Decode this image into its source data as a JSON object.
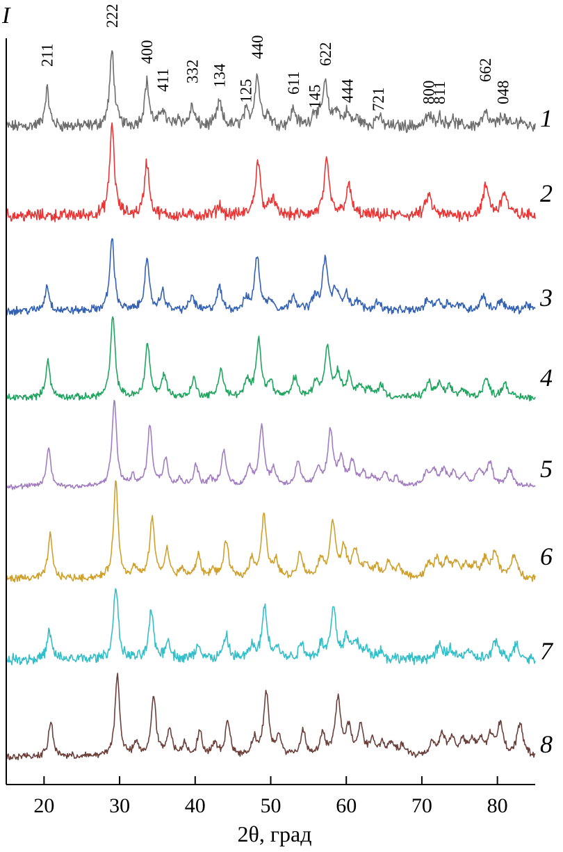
{
  "chart_data": {
    "type": "line",
    "ylabel": "I",
    "xlabel": "2θ, град",
    "xlim": [
      15,
      85
    ],
    "xticks": [
      20,
      30,
      40,
      50,
      60,
      70,
      80
    ],
    "xtick_labels": [
      "20",
      "30",
      "40",
      "50",
      "60",
      "70",
      "80"
    ],
    "grid": false,
    "legend": "none",
    "reflections": [
      {
        "label": "211",
        "x": 20.4
      },
      {
        "label": "222",
        "x": 29.0
      },
      {
        "label": "400",
        "x": 33.6
      },
      {
        "label": "411",
        "x": 35.7
      },
      {
        "label": "332",
        "x": 39.6
      },
      {
        "label": "134",
        "x": 43.2
      },
      {
        "label": "125",
        "x": 46.7
      },
      {
        "label": "440",
        "x": 48.2
      },
      {
        "label": "611",
        "x": 53.0
      },
      {
        "label": "145",
        "x": 55.8
      },
      {
        "label": "622",
        "x": 57.2
      },
      {
        "label": "444",
        "x": 60.1
      },
      {
        "label": "721",
        "x": 64.2
      },
      {
        "label": "800",
        "x": 70.9
      },
      {
        "label": "811",
        "x": 72.3
      },
      {
        "label": "662",
        "x": 78.4
      },
      {
        "label": "048",
        "x": 80.7
      }
    ],
    "series": [
      {
        "label": "1",
        "color": "#6d6d6d",
        "noise": 0.09,
        "peaks": [
          [
            20.4,
            0.35
          ],
          [
            29.0,
            0.72
          ],
          [
            33.6,
            0.42
          ],
          [
            35.7,
            0.17
          ],
          [
            37.8,
            0.08
          ],
          [
            39.6,
            0.18
          ],
          [
            43.2,
            0.23
          ],
          [
            46.7,
            0.12
          ],
          [
            48.2,
            0.48
          ],
          [
            49.6,
            0.1
          ],
          [
            53.0,
            0.16
          ],
          [
            55.8,
            0.13
          ],
          [
            57.2,
            0.4
          ],
          [
            58.7,
            0.15
          ],
          [
            60.1,
            0.12
          ],
          [
            61.5,
            0.07
          ],
          [
            64.2,
            0.1
          ],
          [
            70.9,
            0.1
          ],
          [
            72.3,
            0.09
          ],
          [
            74.0,
            0.06
          ],
          [
            78.4,
            0.12
          ],
          [
            80.7,
            0.1
          ],
          [
            83.0,
            0.06
          ]
        ]
      },
      {
        "label": "2",
        "color": "#ea3535",
        "noise": 0.09,
        "peaks": [
          [
            29.0,
            0.88
          ],
          [
            33.6,
            0.52
          ],
          [
            43.2,
            0.1
          ],
          [
            48.3,
            0.52
          ],
          [
            50.2,
            0.16
          ],
          [
            57.4,
            0.5
          ],
          [
            60.3,
            0.28
          ],
          [
            70.9,
            0.2
          ],
          [
            78.5,
            0.28
          ],
          [
            80.9,
            0.22
          ]
        ]
      },
      {
        "label": "3",
        "color": "#3461b1",
        "noise": 0.06,
        "peaks": [
          [
            20.4,
            0.24
          ],
          [
            29.0,
            0.7
          ],
          [
            33.6,
            0.48
          ],
          [
            35.7,
            0.18
          ],
          [
            39.6,
            0.14
          ],
          [
            43.2,
            0.22
          ],
          [
            46.7,
            0.1
          ],
          [
            48.2,
            0.52
          ],
          [
            50.0,
            0.1
          ],
          [
            53.0,
            0.15
          ],
          [
            55.8,
            0.12
          ],
          [
            57.2,
            0.48
          ],
          [
            58.6,
            0.18
          ],
          [
            60.0,
            0.16
          ],
          [
            61.6,
            0.08
          ],
          [
            64.2,
            0.09
          ],
          [
            70.8,
            0.1
          ],
          [
            72.1,
            0.09
          ],
          [
            73.5,
            0.07
          ],
          [
            75.0,
            0.06
          ],
          [
            78.1,
            0.14
          ],
          [
            80.5,
            0.1
          ],
          [
            84.0,
            0.06
          ]
        ]
      },
      {
        "label": "4",
        "color": "#1fa55f",
        "noise": 0.05,
        "peaks": [
          [
            20.5,
            0.36
          ],
          [
            29.1,
            0.78
          ],
          [
            33.7,
            0.52
          ],
          [
            35.9,
            0.22
          ],
          [
            39.8,
            0.18
          ],
          [
            43.4,
            0.27
          ],
          [
            46.9,
            0.15
          ],
          [
            48.4,
            0.56
          ],
          [
            50.0,
            0.14
          ],
          [
            53.2,
            0.19
          ],
          [
            56.0,
            0.14
          ],
          [
            57.5,
            0.48
          ],
          [
            58.9,
            0.22
          ],
          [
            60.4,
            0.2
          ],
          [
            61.8,
            0.1
          ],
          [
            63.0,
            0.07
          ],
          [
            64.6,
            0.12
          ],
          [
            70.9,
            0.14
          ],
          [
            72.3,
            0.12
          ],
          [
            73.7,
            0.09
          ],
          [
            75.4,
            0.07
          ],
          [
            78.5,
            0.18
          ],
          [
            81.0,
            0.14
          ]
        ]
      },
      {
        "label": "5",
        "color": "#a27dc2",
        "noise": 0.04,
        "peaks": [
          [
            20.6,
            0.37
          ],
          [
            29.3,
            0.83
          ],
          [
            31.8,
            0.09
          ],
          [
            34.0,
            0.58
          ],
          [
            36.1,
            0.27
          ],
          [
            38.0,
            0.07
          ],
          [
            40.1,
            0.2
          ],
          [
            42.0,
            0.07
          ],
          [
            43.8,
            0.33
          ],
          [
            47.2,
            0.18
          ],
          [
            48.8,
            0.57
          ],
          [
            50.4,
            0.15
          ],
          [
            53.6,
            0.22
          ],
          [
            56.3,
            0.17
          ],
          [
            57.9,
            0.52
          ],
          [
            59.3,
            0.25
          ],
          [
            60.8,
            0.22
          ],
          [
            62.2,
            0.12
          ],
          [
            63.5,
            0.09
          ],
          [
            65.1,
            0.13
          ],
          [
            66.6,
            0.08
          ],
          [
            70.6,
            0.12
          ],
          [
            71.6,
            0.14
          ],
          [
            72.9,
            0.15
          ],
          [
            74.2,
            0.12
          ],
          [
            75.6,
            0.1
          ],
          [
            77.6,
            0.15
          ],
          [
            79.0,
            0.22
          ],
          [
            81.6,
            0.17
          ]
        ]
      },
      {
        "label": "6",
        "color": "#cfa12c",
        "noise": 0.05,
        "peaks": [
          [
            20.8,
            0.42
          ],
          [
            29.5,
            0.92
          ],
          [
            32.0,
            0.1
          ],
          [
            34.3,
            0.58
          ],
          [
            36.3,
            0.26
          ],
          [
            38.3,
            0.09
          ],
          [
            40.4,
            0.22
          ],
          [
            42.3,
            0.08
          ],
          [
            44.1,
            0.35
          ],
          [
            47.5,
            0.18
          ],
          [
            49.1,
            0.6
          ],
          [
            50.7,
            0.16
          ],
          [
            53.9,
            0.24
          ],
          [
            56.6,
            0.18
          ],
          [
            58.2,
            0.54
          ],
          [
            59.7,
            0.28
          ],
          [
            61.2,
            0.26
          ],
          [
            62.6,
            0.13
          ],
          [
            64.0,
            0.1
          ],
          [
            65.6,
            0.15
          ],
          [
            67.0,
            0.11
          ],
          [
            70.9,
            0.13
          ],
          [
            72.0,
            0.16
          ],
          [
            73.3,
            0.17
          ],
          [
            74.5,
            0.13
          ],
          [
            75.8,
            0.11
          ],
          [
            77.0,
            0.11
          ],
          [
            78.4,
            0.17
          ],
          [
            79.7,
            0.25
          ],
          [
            82.2,
            0.22
          ]
        ]
      },
      {
        "label": "7",
        "color": "#33bfc9",
        "noise": 0.08,
        "peaks": [
          [
            20.7,
            0.27
          ],
          [
            29.5,
            0.72
          ],
          [
            34.2,
            0.46
          ],
          [
            36.4,
            0.18
          ],
          [
            40.4,
            0.14
          ],
          [
            44.1,
            0.22
          ],
          [
            47.5,
            0.12
          ],
          [
            49.2,
            0.5
          ],
          [
            50.8,
            0.12
          ],
          [
            54.1,
            0.15
          ],
          [
            56.7,
            0.13
          ],
          [
            58.3,
            0.48
          ],
          [
            60.0,
            0.2
          ],
          [
            61.3,
            0.18
          ],
          [
            62.8,
            0.09
          ],
          [
            64.4,
            0.08
          ],
          [
            72.3,
            0.12
          ],
          [
            73.8,
            0.1
          ],
          [
            76.0,
            0.08
          ],
          [
            79.8,
            0.17
          ],
          [
            82.5,
            0.14
          ]
        ]
      },
      {
        "label": "8",
        "color": "#6b3f3a",
        "noise": 0.05,
        "peaks": [
          [
            20.9,
            0.34
          ],
          [
            29.7,
            0.78
          ],
          [
            32.2,
            0.12
          ],
          [
            34.5,
            0.58
          ],
          [
            36.6,
            0.27
          ],
          [
            38.6,
            0.12
          ],
          [
            40.6,
            0.23
          ],
          [
            42.6,
            0.11
          ],
          [
            44.3,
            0.33
          ],
          [
            47.8,
            0.16
          ],
          [
            49.4,
            0.62
          ],
          [
            51.1,
            0.18
          ],
          [
            54.3,
            0.24
          ],
          [
            56.9,
            0.2
          ],
          [
            58.9,
            0.55
          ],
          [
            60.3,
            0.26
          ],
          [
            61.9,
            0.28
          ],
          [
            63.4,
            0.14
          ],
          [
            64.7,
            0.11
          ],
          [
            66.0,
            0.12
          ],
          [
            67.4,
            0.1
          ],
          [
            71.4,
            0.13
          ],
          [
            72.7,
            0.2
          ],
          [
            74.0,
            0.16
          ],
          [
            75.4,
            0.14
          ],
          [
            76.6,
            0.13
          ],
          [
            77.8,
            0.14
          ],
          [
            79.1,
            0.18
          ],
          [
            80.4,
            0.3
          ],
          [
            83.0,
            0.32
          ]
        ]
      }
    ]
  }
}
